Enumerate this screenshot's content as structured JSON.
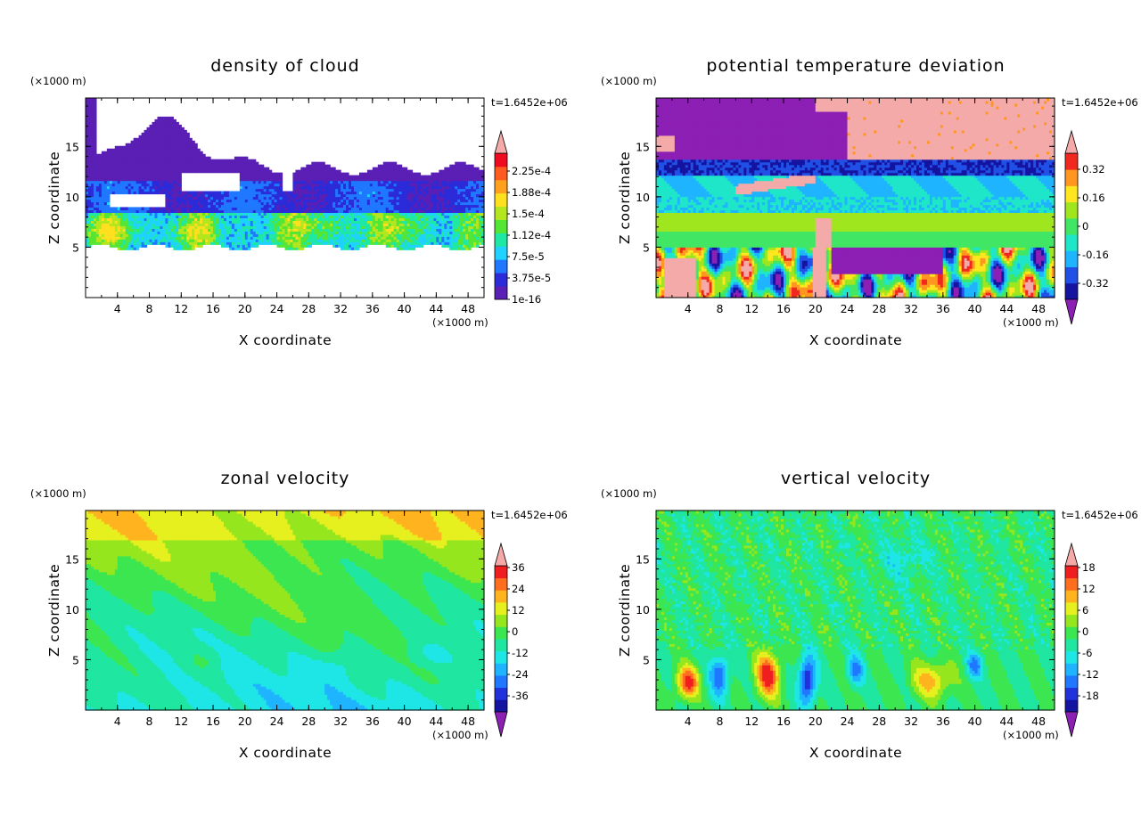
{
  "chart_data": [
    {
      "type": "heatmap",
      "title": "density of cloud",
      "xlabel": "X coordinate",
      "ylabel": "Z coordinate",
      "x_units": "(×1000 m)",
      "y_units": "(×1000 m)",
      "time_label": "t=1.6452e+06",
      "xlim": [
        0,
        50
      ],
      "ylim": [
        0,
        19.8
      ],
      "x_ticks": [
        4,
        8,
        12,
        16,
        20,
        24,
        28,
        32,
        36,
        40,
        44,
        48
      ],
      "y_ticks": [
        5,
        10,
        15
      ],
      "colorbar": {
        "labels": [
          "1e-16",
          "3.75e-5",
          "7.5e-5",
          "1.12e-4",
          "1.5e-4",
          "1.88e-4",
          "2.25e-4"
        ],
        "colors": [
          "#5a1fb4",
          "#2b2bd9",
          "#1f78ff",
          "#1fd2ff",
          "#1fe8a5",
          "#55e635",
          "#b4e61f",
          "#ffe01f",
          "#ffa01f",
          "#ff5a1f",
          "#f00a1f"
        ],
        "end_low": "none",
        "end_high": "#f5aaaa"
      }
    },
    {
      "type": "heatmap",
      "title": "potential temperature deviation",
      "xlabel": "X coordinate",
      "ylabel": "Z coordinate",
      "x_units": "(×1000 m)",
      "y_units": "(×1000 m)",
      "time_label": "t=1.6452e+06",
      "xlim": [
        0,
        50
      ],
      "ylim": [
        0,
        19.8
      ],
      "x_ticks": [
        4,
        8,
        12,
        16,
        20,
        24,
        28,
        32,
        36,
        40,
        44,
        48
      ],
      "y_ticks": [
        5,
        10,
        15
      ],
      "colorbar": {
        "labels": [
          "-0.32",
          "-0.16",
          "0",
          "0.16",
          "0.32"
        ],
        "colors": [
          "#1414a0",
          "#2050e6",
          "#1fb4ff",
          "#1fe6c8",
          "#41e664",
          "#a0e61f",
          "#ffe61f",
          "#ff961f",
          "#f0281f"
        ],
        "end_low": "#8c1fb4",
        "end_high": "#f5aaaa"
      }
    },
    {
      "type": "heatmap",
      "title": "zonal velocity",
      "xlabel": "X coordinate",
      "ylabel": "Z coordinate",
      "x_units": "(×1000 m)",
      "y_units": "(×1000 m)",
      "time_label": "t=1.6452e+06",
      "xlim": [
        0,
        50
      ],
      "ylim": [
        0,
        19.8
      ],
      "x_ticks": [
        4,
        8,
        12,
        16,
        20,
        24,
        28,
        32,
        36,
        40,
        44,
        48
      ],
      "y_ticks": [
        5,
        10,
        15
      ],
      "colorbar": {
        "labels": [
          "-36",
          "-24",
          "-12",
          "0",
          "12",
          "24",
          "36"
        ],
        "colors": [
          "#1414a0",
          "#1f32dc",
          "#1f78ff",
          "#1fb4ff",
          "#1fe6e6",
          "#1fe6a0",
          "#3ce650",
          "#96e61f",
          "#e6f01f",
          "#ffb41f",
          "#ff6e1f",
          "#f01e1f"
        ],
        "end_low": "#8c1fb4",
        "end_high": "#f5aaaa"
      }
    },
    {
      "type": "heatmap",
      "title": "vertical velocity",
      "xlabel": "X coordinate",
      "ylabel": "Z coordinate",
      "x_units": "(×1000 m)",
      "y_units": "(×1000 m)",
      "time_label": "t=1.6452e+06",
      "xlim": [
        0,
        50
      ],
      "ylim": [
        0,
        19.8
      ],
      "x_ticks": [
        4,
        8,
        12,
        16,
        20,
        24,
        28,
        32,
        36,
        40,
        44,
        48
      ],
      "y_ticks": [
        5,
        10,
        15
      ],
      "colorbar": {
        "labels": [
          "-18",
          "-12",
          "-6",
          "0",
          "6",
          "12",
          "18"
        ],
        "colors": [
          "#1414a0",
          "#1f32dc",
          "#1f78ff",
          "#1fb4ff",
          "#1fe6e6",
          "#1fe6a0",
          "#3ce650",
          "#96e61f",
          "#e6f01f",
          "#ffb41f",
          "#ff6e1f",
          "#f01e1f"
        ],
        "end_low": "#8c1fb4",
        "end_high": "#f5aaaa"
      }
    }
  ]
}
